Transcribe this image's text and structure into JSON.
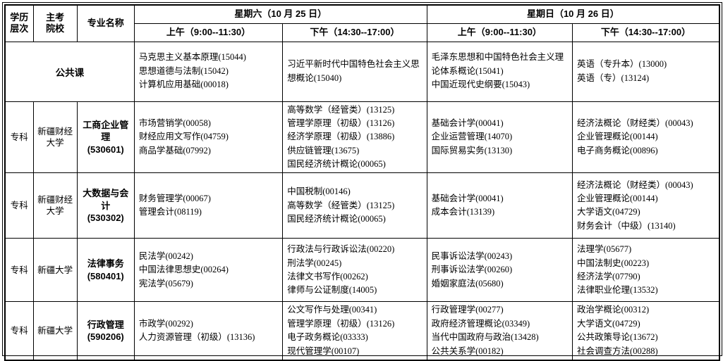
{
  "table": {
    "header": {
      "level": "学历\n层次",
      "school": "主考\n院校",
      "major": "专业名称",
      "saturday": "星期六（10 月 25 日）",
      "sunday": "星期日（10 月 26 日）",
      "am": "上午（9:00--11:30）",
      "pm": "下午（14:30--17:00）"
    },
    "public_course": {
      "label": "公共课",
      "sat_am": "马克思主义基本原理(15044)\n思想道德与法制(15042)\n计算机应用基础(00018)",
      "sat_pm": "习近平新时代中国特色社会主义思想概论(15040)",
      "sun_am": "毛泽东思想和中国特色社会主义理论体系概论(15041)\n中国近现代史纲要(15043)",
      "sun_pm": "英语（专升本）(13000)\n英语（专）(13124)"
    },
    "rows": [
      {
        "level": "专科",
        "school": "新疆财经\n大学",
        "major": "工商企业管理\n(530601)",
        "sat_am": "市场营销学(00058)\n财经应用文写作(04759)\n商品学基础(07992)",
        "sat_pm": "高等数学（经管类）(13125)\n管理学原理（初级）(13126)\n经济学原理（初级）(13886)\n供应链管理(13675)\n国民经济统计概论(00065)",
        "sun_am": "基础会计学(00041)\n企业运营管理(14070)\n国际贸易实务(13130)",
        "sun_pm": "经济法概论（财经类）(00043)\n企业管理概论(00144)\n电子商务概论(00896)"
      },
      {
        "level": "专科",
        "school": "新疆财经\n大学",
        "major": "大数据与会计\n(530302)",
        "sat_am": "财务管理学(00067)\n管理会计(08119)",
        "sat_pm": "中国税制(00146)\n高等数学（经管类）(13125)\n国民经济统计概论(00065)",
        "sun_am": "基础会计学(00041)\n成本会计(13139)",
        "sun_pm": "经济法概论（财经类）(00043)\n企业管理概论(00144)\n大学语文(04729)\n财务会计（中级）(13140)"
      },
      {
        "level": "专科",
        "school": "新疆大学",
        "major": "法律事务\n(580401)",
        "sat_am": "民法学(00242)\n中国法律思想史(00264)\n宪法学(05679)",
        "sat_pm": "行政法与行政诉讼法(00220)\n刑法学(00245)\n法律文书写作(00262)\n律师与公证制度(14005)",
        "sun_am": "民事诉讼法学(00243)\n刑事诉讼法学(00260)\n婚姻家庭法(05680)",
        "sun_pm": "法理学(05677)\n中国法制史(00223)\n经济法学(07790)\n法律职业伦理(13532)"
      },
      {
        "level": "专科",
        "school": "新疆大学",
        "major": "行政管理\n(590206)",
        "sat_am": "市政学(00292)\n人力资源管理（初级）(13136)",
        "sat_pm": "公文写作与处理(00341)\n管理学原理（初级）(13126)\n电子政务概论(03333)\n现代管理学(00107)",
        "sun_am": "行政管理学(00277)\n政府经济管理概论(03349)\n当代中国政府与政治(13428)\n公共关系学(00182)",
        "sun_pm": "政治学概论(00312)\n大学语文(04729)\n公共政策导论(13672)\n社会调查方法(00288)"
      }
    ]
  }
}
